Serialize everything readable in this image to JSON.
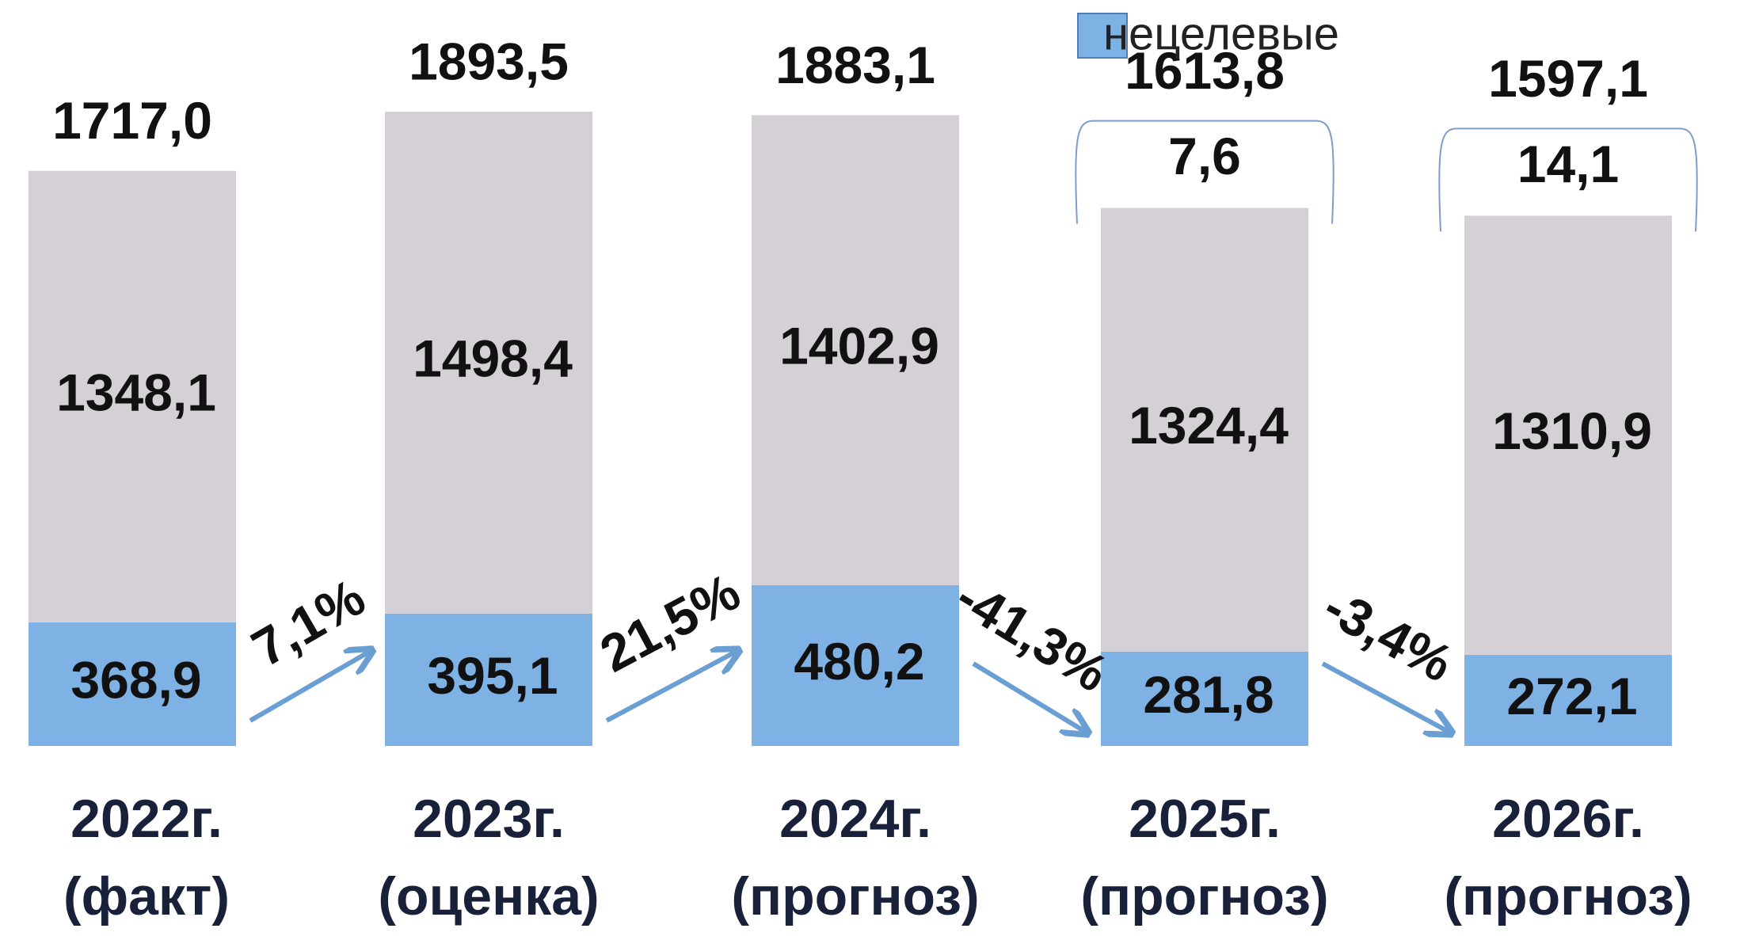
{
  "chart_data": {
    "type": "stacked_bar",
    "categories": [
      "2022г. (факт)",
      "2023г. (оценка)",
      "2024г. (прогноз)",
      "2025г. (прогноз)",
      "2026г. (прогноз)"
    ],
    "series": [
      {
        "name": "нецелевые",
        "color": "#7eb2e4",
        "values": [
          368.9,
          395.1,
          480.2,
          281.8,
          272.1
        ],
        "value_labels": [
          "368,9",
          "395,1",
          "480,2",
          "281,8",
          "272,1"
        ]
      },
      {
        "name": null,
        "color": "#d5d0d6",
        "values": [
          1348.1,
          1498.4,
          1402.9,
          1324.4,
          1310.9
        ],
        "value_labels": [
          "1348,1",
          "1498,4",
          "1402,9",
          "1324,4",
          "1310,9"
        ]
      },
      {
        "name": null,
        "color": "#7d9ccc",
        "values": [
          null,
          null,
          null,
          7.6,
          14.1
        ],
        "value_labels": [
          null,
          null,
          null,
          "7,6",
          "14,1"
        ]
      }
    ],
    "totals": {
      "values": [
        1717.0,
        1893.5,
        1883.1,
        1613.8,
        1597.1
      ],
      "value_labels": [
        "1717,0",
        "1893,5",
        "1883,1",
        "1613,8",
        "1597,1"
      ]
    },
    "changes": [
      {
        "value": 7.1,
        "label": "7,1%"
      },
      {
        "value": 21.5,
        "label": "21,5%"
      },
      {
        "value": -41.3,
        "label": "-41,3%"
      },
      {
        "value": -3.4,
        "label": "-3,4%"
      }
    ],
    "arrow_color": "#6a9fd4",
    "legend": "top-right"
  }
}
